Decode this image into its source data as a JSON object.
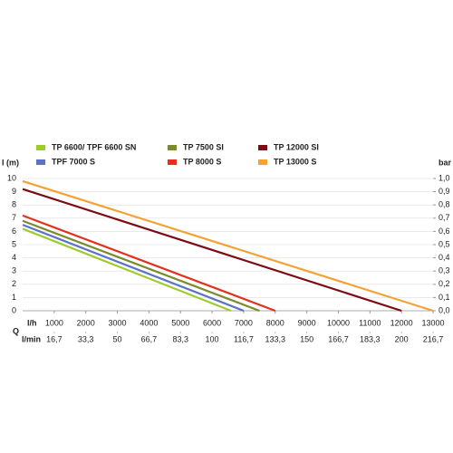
{
  "chart_data": {
    "type": "line",
    "y_label": "l (m)",
    "y2_label": "bar",
    "x_label": "l/h",
    "x2_label": "l/min",
    "x_symbol": "Q",
    "xlim": [
      0,
      13000
    ],
    "xticks": [
      1000,
      2000,
      3000,
      4000,
      5000,
      6000,
      7000,
      8000,
      9000,
      10000,
      11000,
      12000,
      13000
    ],
    "x2ticks": [
      {
        "value": 1000,
        "label": "16,7"
      },
      {
        "value": 2000,
        "label": "33,3"
      },
      {
        "value": 3000,
        "label": "50"
      },
      {
        "value": 4000,
        "label": "66,7"
      },
      {
        "value": 5000,
        "label": "83,3"
      },
      {
        "value": 6000,
        "label": "100"
      },
      {
        "value": 7000,
        "label": "116,7"
      },
      {
        "value": 8000,
        "label": "133,3"
      },
      {
        "value": 9000,
        "label": "150"
      },
      {
        "value": 10000,
        "label": "166,7"
      },
      {
        "value": 11000,
        "label": "183,3"
      },
      {
        "value": 12000,
        "label": "200"
      },
      {
        "value": 13000,
        "label": "216,7"
      }
    ],
    "ylim": [
      0,
      10
    ],
    "yticks": [
      0,
      1,
      2,
      3,
      4,
      5,
      6,
      7,
      8,
      9,
      10
    ],
    "y2lim": [
      0,
      1
    ],
    "y2ticks": [
      {
        "value": 0,
        "label": "0,0"
      },
      {
        "value": 0.1,
        "label": "0,1"
      },
      {
        "value": 0.2,
        "label": "0,2"
      },
      {
        "value": 0.3,
        "label": "0,3"
      },
      {
        "value": 0.4,
        "label": "0,4"
      },
      {
        "value": 0.5,
        "label": "0,5"
      },
      {
        "value": 0.6,
        "label": "0,6"
      },
      {
        "value": 0.7,
        "label": "0,7"
      },
      {
        "value": 0.8,
        "label": "0,8"
      },
      {
        "value": 0.9,
        "label": "0,9"
      },
      {
        "value": 1,
        "label": "1,0"
      }
    ],
    "grid": true,
    "series": [
      {
        "name": "TP 6600/ TPF 6600 SN",
        "color": "#9ccc2c",
        "x": [
          0,
          6600
        ],
        "values": [
          6.2,
          0
        ]
      },
      {
        "name": "TP 7500 SI",
        "color": "#7b8b2b",
        "x": [
          0,
          7500
        ],
        "values": [
          6.8,
          0
        ]
      },
      {
        "name": "TP 12000 SI",
        "color": "#7a0c14",
        "x": [
          0,
          12000
        ],
        "values": [
          9.2,
          0
        ]
      },
      {
        "name": "TPF 7000 S",
        "color": "#5a72c8",
        "x": [
          0,
          7000
        ],
        "values": [
          6.5,
          0
        ]
      },
      {
        "name": "TP 8000 S",
        "color": "#e0321e",
        "x": [
          0,
          8000
        ],
        "values": [
          7.2,
          0
        ]
      },
      {
        "name": "TP 13000 S",
        "color": "#f4a236",
        "x": [
          0,
          13000
        ],
        "values": [
          9.8,
          0
        ]
      }
    ]
  }
}
